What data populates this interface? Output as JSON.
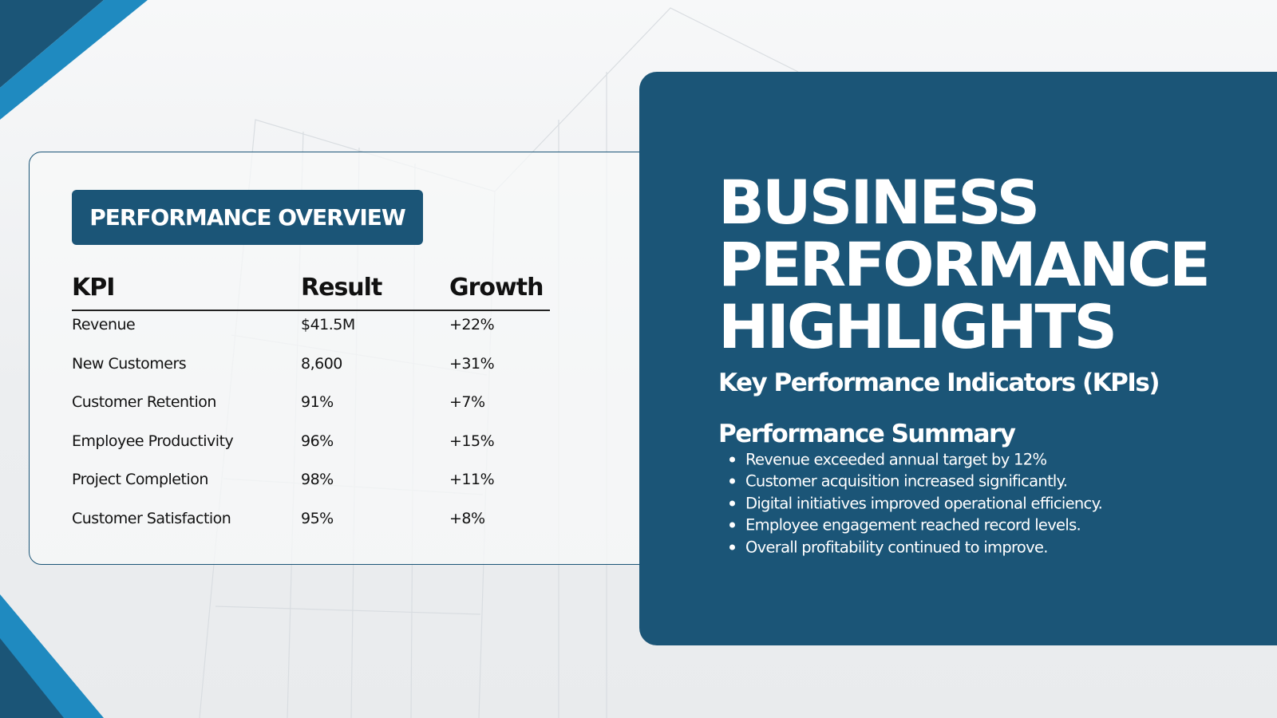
{
  "panel": {
    "heading": "PERFORMANCE OVERVIEW"
  },
  "table": {
    "headers": [
      "KPI",
      "Result",
      "Growth"
    ],
    "rows": [
      [
        "Revenue",
        "$41.5M",
        "+22%"
      ],
      [
        "New Customers",
        "8,600",
        "+31%"
      ],
      [
        "Customer Retention",
        "91%",
        "+7%"
      ],
      [
        "Employee Productivity",
        "96%",
        "+15%"
      ],
      [
        "Project Completion",
        "98%",
        "+11%"
      ],
      [
        "Customer Satisfaction",
        "95%",
        "+8%"
      ]
    ]
  },
  "highlights": {
    "title": [
      "BUSINESS",
      "PERFORMANCE",
      "HIGHLIGHTS"
    ],
    "subtitle": "Key Performance Indicators (KPIs)"
  },
  "summary": {
    "title": "Performance Summary",
    "items": [
      "Revenue exceeded annual target by 12%",
      "Customer acquisition increased significantly.",
      "Digital initiatives improved operational efficiency.",
      "Employee engagement reached record levels.",
      "Overall profitability continued to improve."
    ]
  }
}
